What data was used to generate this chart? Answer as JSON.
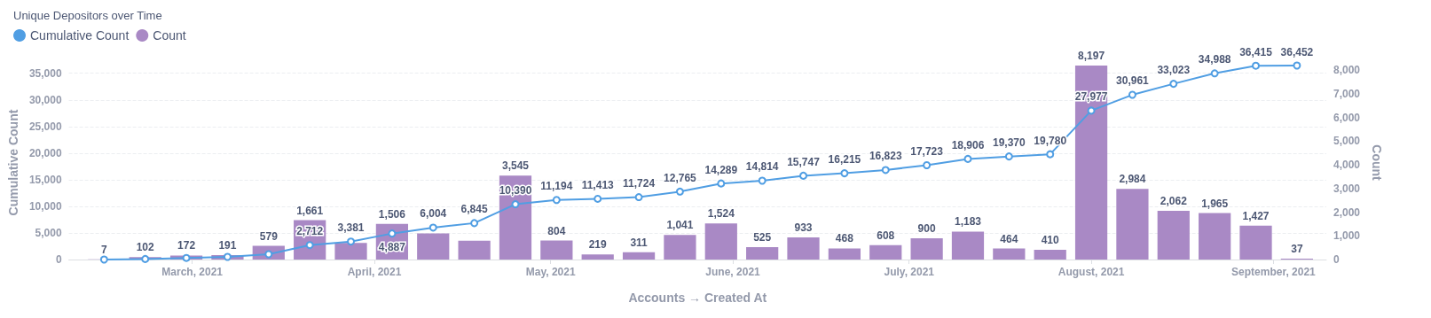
{
  "chart_data": {
    "type": "bar",
    "title": "Unique Depositors over Time",
    "xlabel": "Accounts → Created At",
    "ylabel": "Cumulative Count",
    "y2label": "Count",
    "x": [
      "2021-02-14",
      "2021-02-21",
      "2021-02-28",
      "2021-03-07",
      "2021-03-14",
      "2021-03-21",
      "2021-03-28",
      "2021-04-04",
      "2021-04-11",
      "2021-04-18",
      "2021-04-25",
      "2021-05-02",
      "2021-05-09",
      "2021-05-16",
      "2021-05-23",
      "2021-05-30",
      "2021-06-06",
      "2021-06-13",
      "2021-06-20",
      "2021-06-27",
      "2021-07-04",
      "2021-07-11",
      "2021-07-18",
      "2021-07-25",
      "2021-08-01",
      "2021-08-08",
      "2021-08-15",
      "2021-08-22",
      "2021-08-29",
      "2021-09-05"
    ],
    "series": [
      {
        "name": "Cumulative Count",
        "type": "line",
        "color": "#509ee3",
        "marker": "circle",
        "values": [
          0,
          100,
          300,
          500,
          1000,
          2712,
          3381,
          4887,
          6004,
          6845,
          10390,
          11194,
          11413,
          11724,
          12765,
          14289,
          14814,
          15747,
          16215,
          16823,
          17723,
          18906,
          19370,
          19780,
          27977,
          30961,
          33023,
          34988,
          36415,
          36452
        ],
        "value_labels": [
          null,
          null,
          null,
          null,
          null,
          "2,712",
          "3,381",
          "4,887",
          "6,004",
          "6,845",
          "10,390",
          "11,194",
          "11,413",
          "11,724",
          "12,765",
          "14,289",
          "14,814",
          "15,747",
          "16,215",
          "16,823",
          "17,723",
          "18,906",
          "19,370",
          "19,780",
          "27,977",
          "30,961",
          "33,023",
          "34,988",
          "36,415",
          "36,452"
        ]
      },
      {
        "name": "Count",
        "axis": "y2",
        "color": "#a989c5",
        "values": [
          7,
          102,
          172,
          191,
          579,
          1661,
          700,
          1506,
          1100,
          800,
          3545,
          804,
          219,
          311,
          1041,
          1524,
          525,
          933,
          468,
          608,
          900,
          1183,
          464,
          410,
          8197,
          2984,
          2062,
          1965,
          1427,
          37
        ],
        "value_labels": [
          "7",
          "102",
          "172",
          "191",
          "579",
          "1,661",
          null,
          "1,506",
          null,
          null,
          "3,545",
          "804",
          "219",
          "311",
          "1,041",
          "1,524",
          "525",
          "933",
          "468",
          "608",
          "900",
          "1,183",
          "464",
          "410",
          "8,197",
          "2,984",
          "2,062",
          "1,965",
          "1,427",
          "37"
        ]
      }
    ],
    "xlim": [
      "2021-02-08",
      "2021-09-10"
    ],
    "xticks": [
      {
        "value": "2021-03-01",
        "label": "March, 2021"
      },
      {
        "value": "2021-04-01",
        "label": "April, 2021"
      },
      {
        "value": "2021-05-01",
        "label": "May, 2021"
      },
      {
        "value": "2021-06-01",
        "label": "June, 2021"
      },
      {
        "value": "2021-07-01",
        "label": "July, 2021"
      },
      {
        "value": "2021-08-01",
        "label": "August, 2021"
      },
      {
        "value": "2021-09-01",
        "label": "September, 2021"
      }
    ],
    "ylim": [
      0,
      36452
    ],
    "yticks": [
      {
        "value": 0,
        "label": "0"
      },
      {
        "value": 5000,
        "label": "5,000"
      },
      {
        "value": 10000,
        "label": "10,000"
      },
      {
        "value": 15000,
        "label": "15,000"
      },
      {
        "value": 20000,
        "label": "20,000"
      },
      {
        "value": 25000,
        "label": "25,000"
      },
      {
        "value": 30000,
        "label": "30,000"
      },
      {
        "value": 35000,
        "label": "35,000"
      }
    ],
    "y2lim": [
      0,
      8197
    ],
    "y2ticks": [
      {
        "value": 0,
        "label": "0"
      },
      {
        "value": 1000,
        "label": "1,000"
      },
      {
        "value": 2000,
        "label": "2,000"
      },
      {
        "value": 3000,
        "label": "3,000"
      },
      {
        "value": 4000,
        "label": "4,000"
      },
      {
        "value": 5000,
        "label": "5,000"
      },
      {
        "value": 6000,
        "label": "6,000"
      },
      {
        "value": 7000,
        "label": "7,000"
      },
      {
        "value": 8000,
        "label": "8,000"
      }
    ],
    "grid": "y",
    "legend": "top left"
  }
}
